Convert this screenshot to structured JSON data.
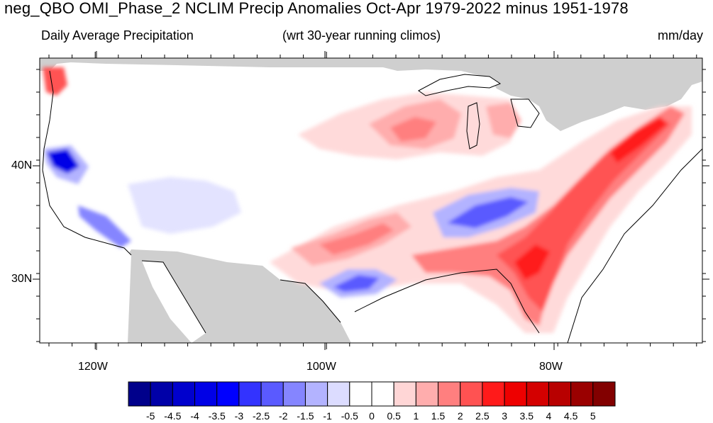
{
  "title": "neg_QBO OMI_Phase_2 NCLIM Precip Anomalies Oct-Apr 1979-2022 minus 1951-1978",
  "subtitle_left": "Daily Average Precipitation",
  "subtitle_center": "(wrt 30-year running climos)",
  "subtitle_right": "mm/day",
  "lat_labels": [
    "40N",
    "30N"
  ],
  "lon_labels": [
    "120W",
    "100W",
    "80W"
  ],
  "colorbar": {
    "tick_labels": [
      "-5",
      "-4.5",
      "-4",
      "-3.5",
      "-3",
      "-2.5",
      "-2",
      "-1.5",
      "-1",
      "-0.5",
      "0",
      "0.5",
      "1",
      "1.5",
      "2",
      "2.5",
      "3",
      "3.5",
      "4",
      "4.5",
      "5"
    ],
    "colors": [
      "#00008b",
      "#0000a8",
      "#0000cd",
      "#0000e6",
      "#0000ff",
      "#3333ff",
      "#5a5aff",
      "#8585ff",
      "#b3b3ff",
      "#dcdcff",
      "#ffffff",
      "#ffffff",
      "#ffd6d6",
      "#ffadad",
      "#ff7f7f",
      "#ff5252",
      "#ff1a1a",
      "#ee0000",
      "#d40000",
      "#b80000",
      "#9a0000",
      "#820000"
    ]
  },
  "colors": {
    "land_mask": "#cfcfcf",
    "background": "#ffffff"
  }
}
